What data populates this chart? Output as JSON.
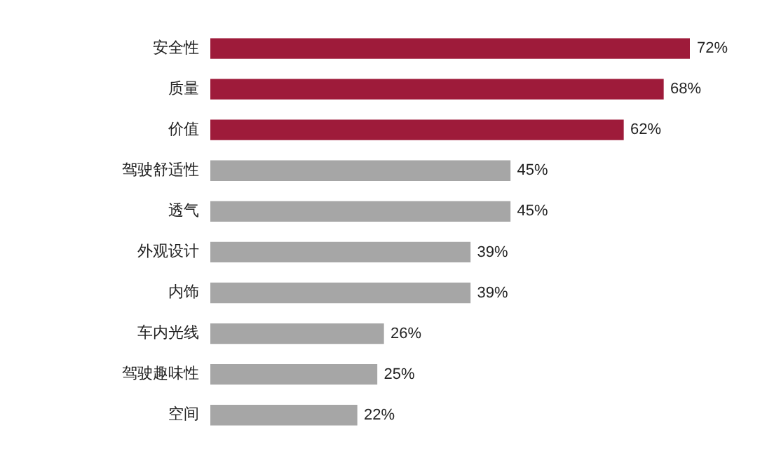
{
  "chart_data": {
    "type": "bar",
    "orientation": "horizontal",
    "categories": [
      "安全性",
      "质量",
      "价值",
      "驾驶舒适性",
      "透气",
      "外观设计",
      "内饰",
      "车内光线",
      "驾驶趣味性",
      "空间"
    ],
    "values": [
      72,
      68,
      62,
      45,
      45,
      39,
      39,
      26,
      25,
      22
    ],
    "colors": [
      "#9e1b3a",
      "#9e1b3a",
      "#9e1b3a",
      "#a6a6a6",
      "#a6a6a6",
      "#a6a6a6",
      "#a6a6a6",
      "#a6a6a6",
      "#a6a6a6",
      "#a6a6a6"
    ],
    "value_labels": [
      "72%",
      "68%",
      "62%",
      "45%",
      "45%",
      "39%",
      "39%",
      "26%",
      "25%",
      "22%"
    ],
    "grid": false,
    "legend": false
  }
}
